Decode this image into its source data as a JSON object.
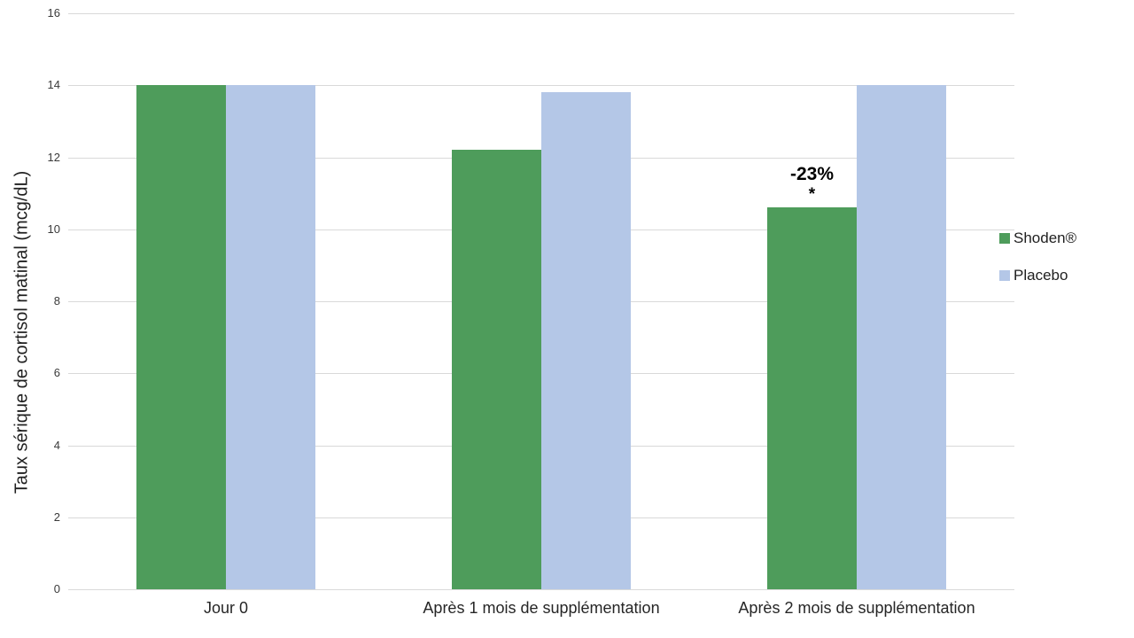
{
  "chart_data": {
    "type": "bar",
    "title": "",
    "xlabel": "",
    "ylabel": "Taux sérique de cortisol matinal (mcg/dL)",
    "ylim": [
      0,
      16
    ],
    "yticks": [
      0,
      2,
      4,
      6,
      8,
      10,
      12,
      14,
      16
    ],
    "grid": true,
    "legend_position": "right",
    "categories": [
      "Jour 0",
      "Après 1 mois de supplémentation",
      "Après 2 mois de supplémentation"
    ],
    "series": [
      {
        "name": "Shoden®",
        "color": "#4E9C5B",
        "values": [
          14,
          12.2,
          10.6
        ]
      },
      {
        "name": "Placebo",
        "color": "#B4C7E7",
        "values": [
          14,
          13.8,
          14
        ]
      }
    ],
    "annotations": [
      {
        "category_index": 2,
        "series_index": 0,
        "lines": [
          "-23%",
          "*"
        ]
      }
    ],
    "colors": {
      "gridline": "#D9D9D9",
      "axis_tick_text": "#3A3A3A",
      "category_text": "#262626",
      "annotation_text": "#000000",
      "background": "#FFFFFF"
    }
  }
}
